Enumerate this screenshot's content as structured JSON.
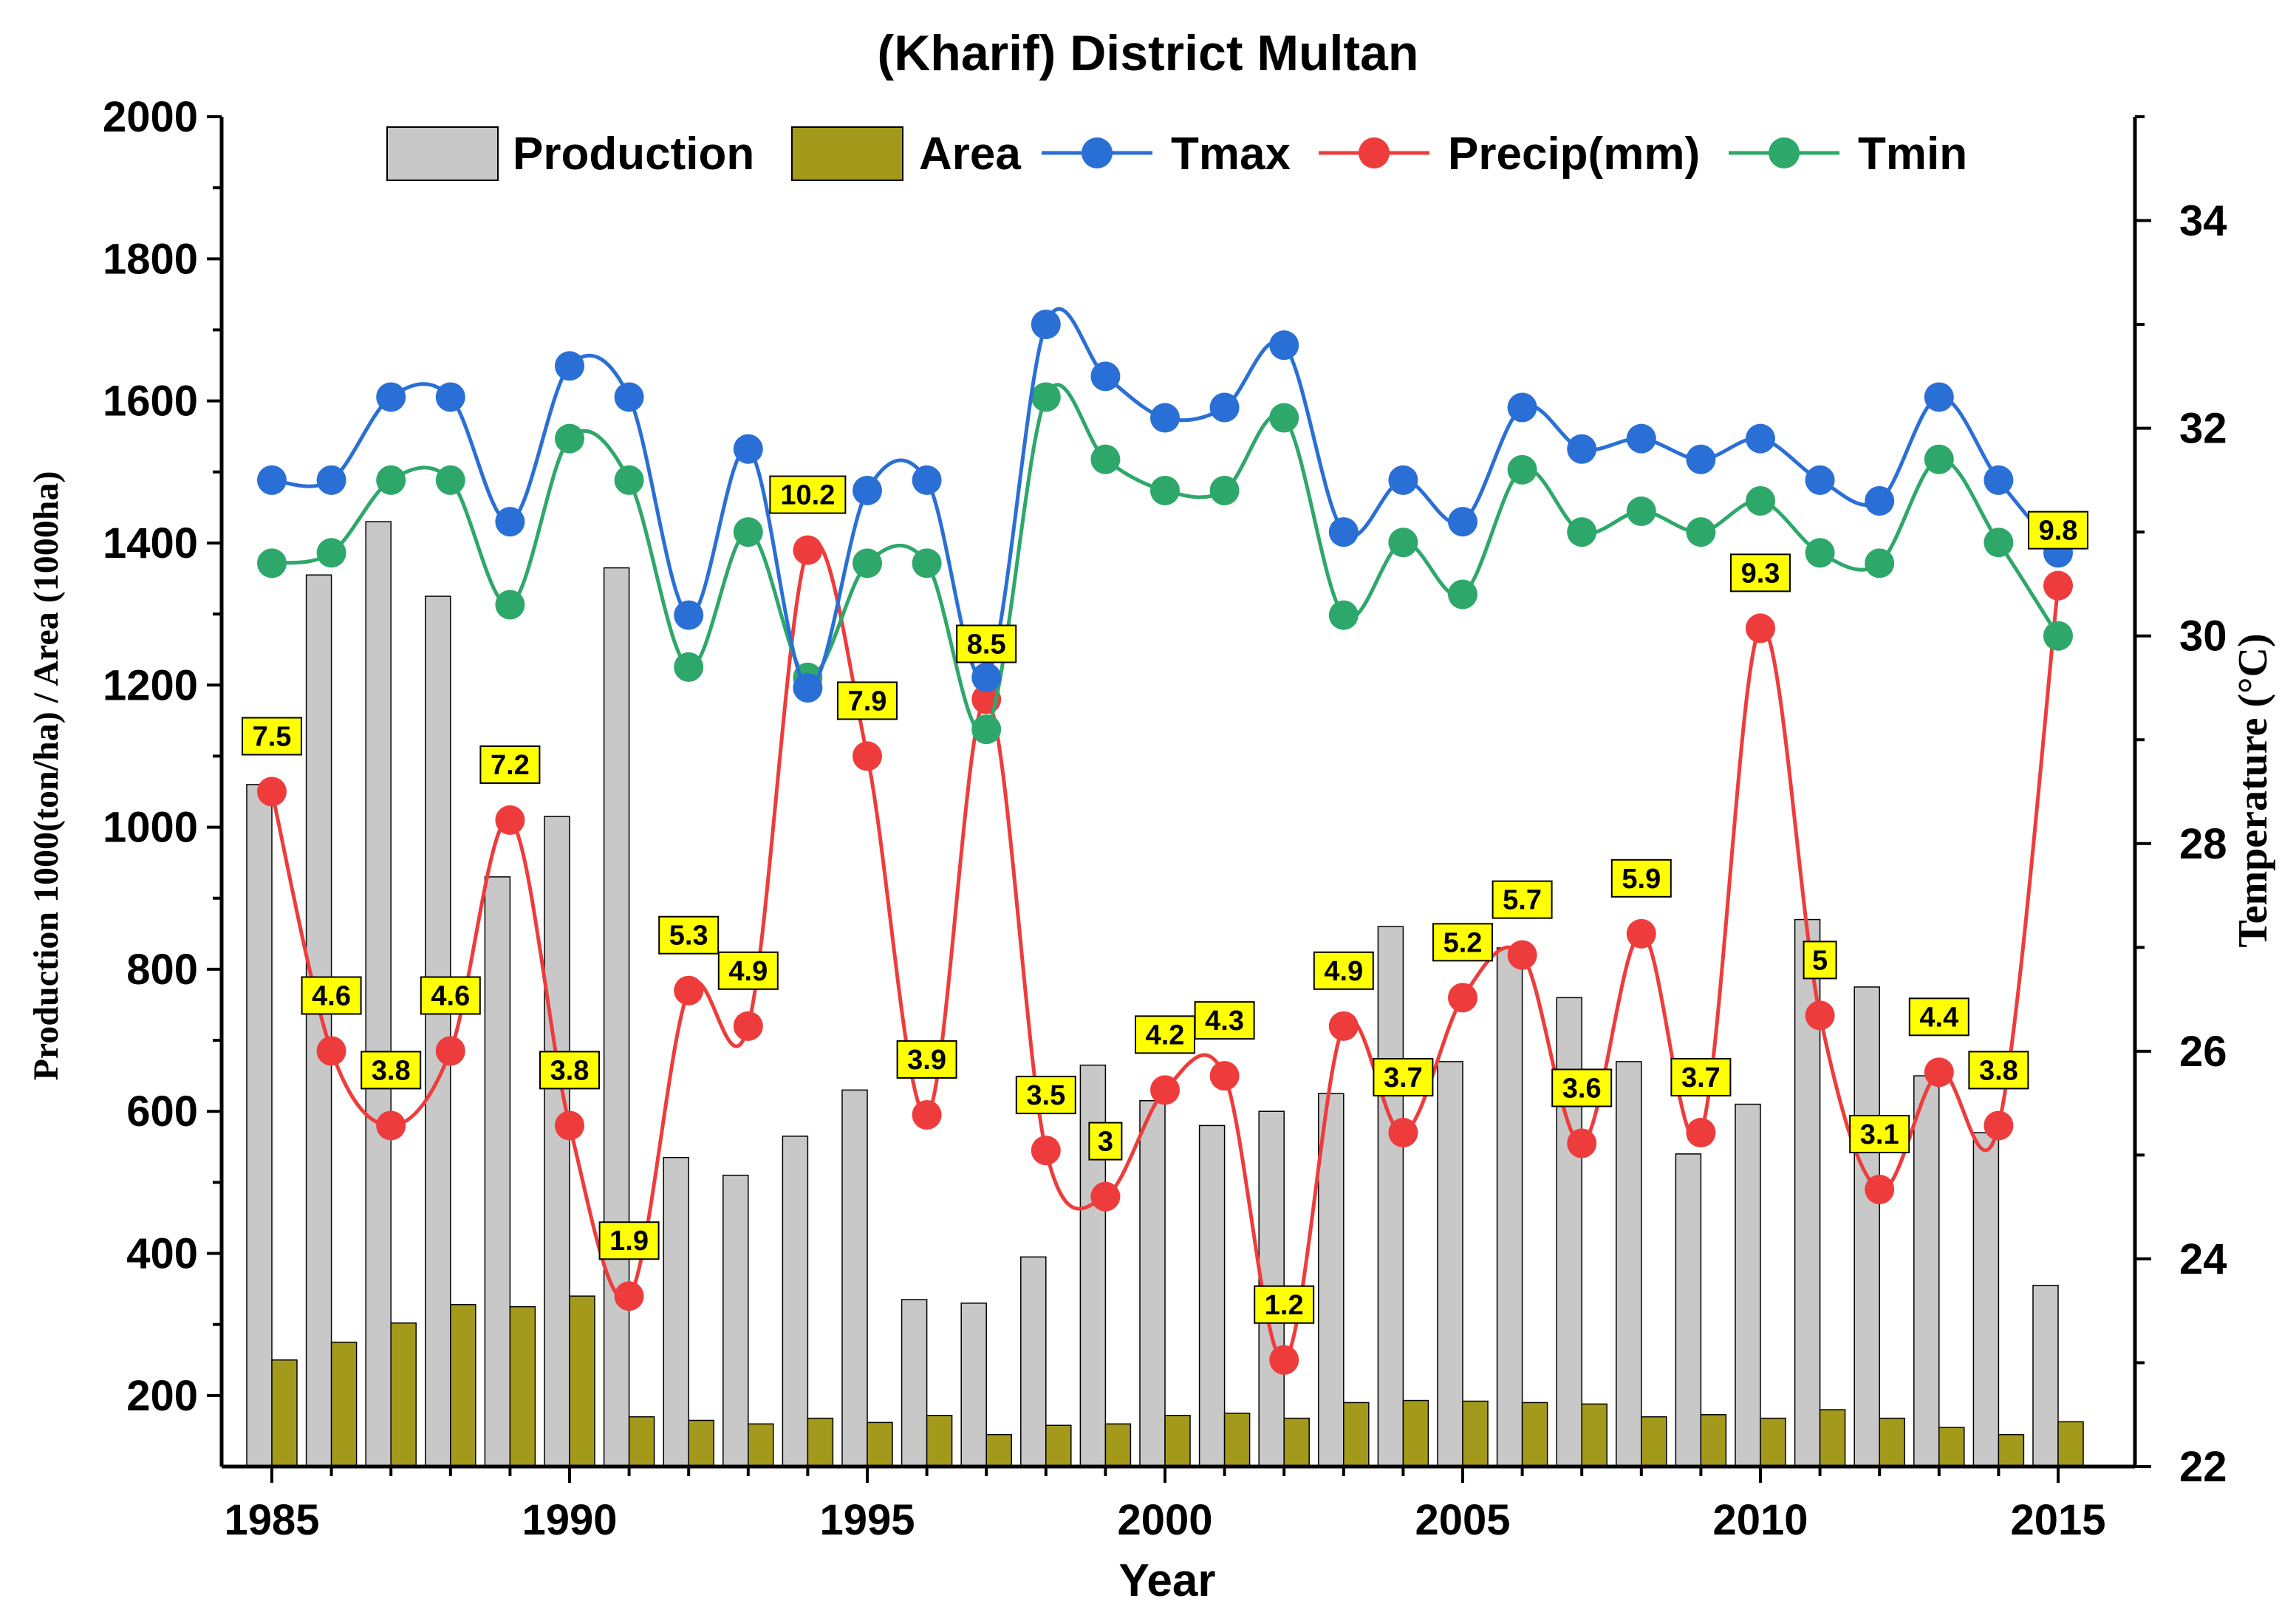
{
  "chart_data": {
    "type": "bar+line",
    "title": "(Kharif) District Multan",
    "xlabel": "Year",
    "ylabel_left": "Production 1000(ton/ha) / Area (1000ha)",
    "ylabel_right": "Temperature (°C)",
    "ylim_left": [
      100,
      2000
    ],
    "ylim_right": [
      22,
      35
    ],
    "left_ticks": [
      200,
      400,
      600,
      800,
      1000,
      1200,
      1400,
      1600,
      1800,
      2000
    ],
    "right_ticks": [
      22,
      24,
      26,
      28,
      30,
      32,
      34
    ],
    "x_ticks": [
      1985,
      1990,
      1995,
      2000,
      2005,
      2010,
      2015
    ],
    "years": [
      1985,
      1986,
      1987,
      1988,
      1989,
      1990,
      1991,
      1992,
      1993,
      1994,
      1995,
      1996,
      1997,
      1998,
      1999,
      2000,
      2001,
      2002,
      2003,
      2004,
      2005,
      2006,
      2007,
      2008,
      2009,
      2010,
      2011,
      2012,
      2013,
      2014,
      2015
    ],
    "legend": {
      "production": "Production",
      "area": "Area",
      "tmax": "Tmax",
      "precip": "Precip(mm)",
      "tmin": "Tmin"
    },
    "series": [
      {
        "name": "Production",
        "kind": "bar",
        "axis": "left",
        "values": [
          1060,
          1355,
          1430,
          1325,
          930,
          1015,
          1365,
          535,
          510,
          565,
          630,
          335,
          330,
          395,
          665,
          615,
          580,
          600,
          625,
          860,
          670,
          830,
          760,
          670,
          540,
          610,
          870,
          775,
          650,
          570,
          355
        ]
      },
      {
        "name": "Area",
        "kind": "bar",
        "axis": "left",
        "values": [
          250,
          275,
          302,
          328,
          325,
          340,
          170,
          165,
          160,
          168,
          162,
          172,
          145,
          158,
          160,
          172,
          175,
          168,
          190,
          193,
          192,
          190,
          188,
          170,
          173,
          168,
          180,
          168,
          155,
          145,
          163
        ]
      },
      {
        "name": "Tmax",
        "kind": "line",
        "axis": "right",
        "values": [
          31.5,
          31.5,
          32.3,
          32.3,
          31.1,
          32.6,
          32.3,
          30.2,
          31.8,
          29.5,
          31.4,
          31.5,
          29.6,
          33.0,
          32.5,
          32.1,
          32.2,
          32.8,
          31.0,
          31.5,
          31.1,
          32.2,
          31.8,
          31.9,
          31.7,
          31.9,
          31.5,
          31.3,
          32.3,
          31.5,
          30.8
        ]
      },
      {
        "name": "Precip(mm)",
        "kind": "line",
        "axis": "left",
        "labels": [
          "7.5",
          "4.6",
          "3.8",
          "4.6",
          "7.2",
          "3.8",
          "1.9",
          "5.3",
          "4.9",
          "10.2",
          "7.9",
          "3.9",
          "8.5",
          "3.5",
          "3",
          "4.2",
          "4.3",
          "1.2",
          "4.9",
          "3.7",
          "5.2",
          "5.7",
          "3.6",
          "5.9",
          "3.7",
          "9.3",
          "5",
          "3.1",
          "4.4",
          "3.8",
          "9.8"
        ],
        "values": [
          1050,
          685,
          580,
          685,
          1010,
          580,
          340,
          770,
          720,
          1390,
          1100,
          595,
          1180,
          545,
          480,
          630,
          650,
          250,
          720,
          570,
          760,
          820,
          555,
          850,
          570,
          1280,
          735,
          490,
          655,
          580,
          1340
        ]
      },
      {
        "name": "Tmin",
        "kind": "line",
        "axis": "right",
        "values": [
          30.7,
          30.8,
          31.5,
          31.5,
          30.3,
          31.9,
          31.5,
          29.7,
          31.0,
          29.6,
          30.7,
          30.7,
          29.1,
          32.3,
          31.7,
          31.4,
          31.4,
          32.1,
          30.2,
          30.9,
          30.4,
          31.6,
          31.0,
          31.2,
          31.0,
          31.3,
          30.8,
          30.7,
          31.7,
          30.9,
          30.0
        ]
      }
    ],
    "colors": {
      "production": "#c8c8c8",
      "area": "#a39a1b",
      "tmax": "#2a6fd6",
      "precip": "#ee3c3c",
      "tmin": "#2ea86a",
      "label_bg": "#ffff00"
    }
  }
}
